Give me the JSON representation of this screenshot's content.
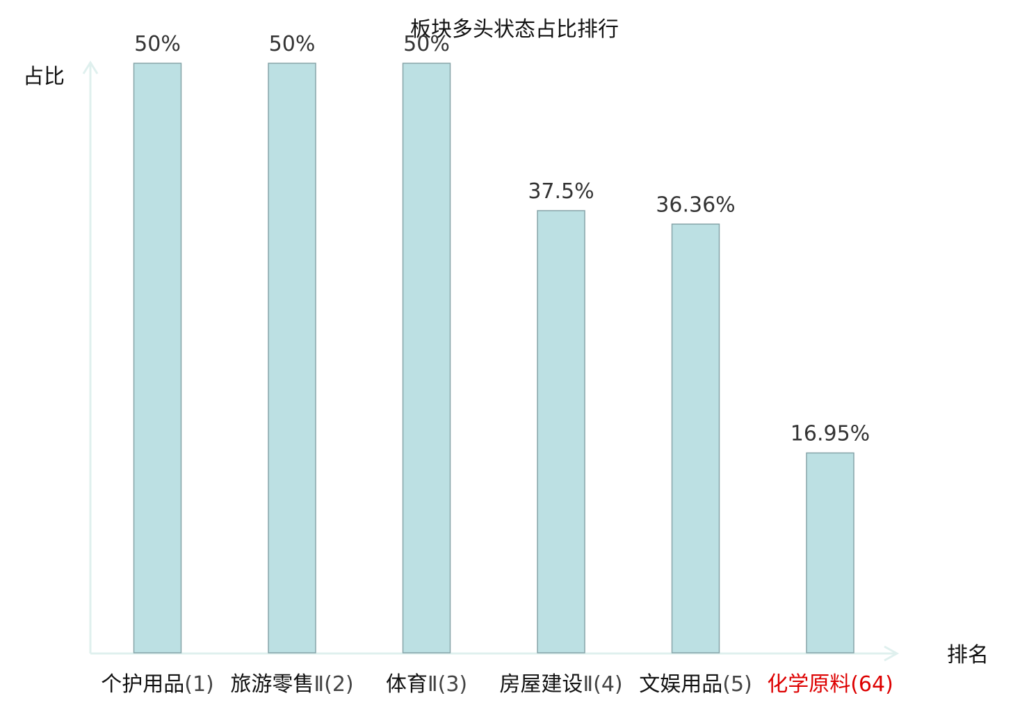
{
  "chart_data": {
    "type": "bar",
    "title": "板块多头状态占比排行",
    "xlabel": "排名",
    "ylabel": "占比",
    "ylim": [
      0,
      50
    ],
    "grid": false,
    "categories": [
      {
        "name": "个护用品",
        "rank": "(1)",
        "highlight": false
      },
      {
        "name": "旅游零售",
        "rank": "Ⅱ(2)",
        "highlight": false
      },
      {
        "name": "体育",
        "rank": "Ⅱ(3)",
        "highlight": false
      },
      {
        "name": "房屋建设",
        "rank": "Ⅱ(4)",
        "highlight": false
      },
      {
        "name": "文娱用品",
        "rank": "(5)",
        "highlight": false
      },
      {
        "name": "化学原料",
        "rank": "(64)",
        "highlight": true
      }
    ],
    "values": [
      50,
      50,
      50,
      37.5,
      36.36,
      16.95
    ],
    "value_labels": [
      "50%",
      "50%",
      "50%",
      "37.5%",
      "36.36%",
      "16.95%"
    ],
    "colors": {
      "bar_fill": "#bce0e3",
      "bar_stroke": "#86a4a8",
      "axis": "#dff0ee",
      "highlight": "#dd0000"
    }
  }
}
